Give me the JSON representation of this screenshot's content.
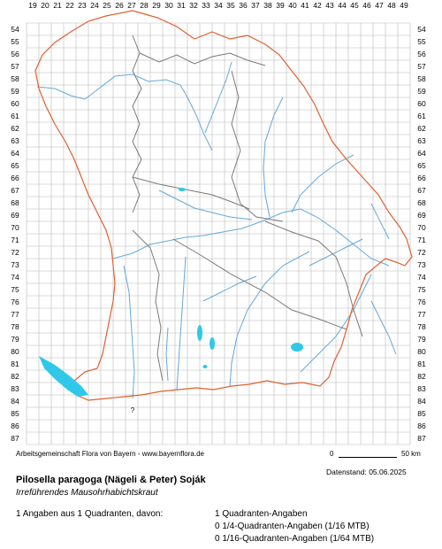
{
  "map": {
    "x_labels": [
      "19",
      "20",
      "21",
      "22",
      "23",
      "24",
      "25",
      "26",
      "27",
      "28",
      "29",
      "30",
      "31",
      "32",
      "33",
      "34",
      "35",
      "36",
      "37",
      "38",
      "39",
      "40",
      "41",
      "42",
      "43",
      "44",
      "45",
      "46",
      "47",
      "48",
      "49"
    ],
    "y_labels": [
      "54",
      "55",
      "56",
      "57",
      "58",
      "59",
      "60",
      "61",
      "62",
      "63",
      "64",
      "65",
      "66",
      "67",
      "68",
      "69",
      "70",
      "71",
      "72",
      "73",
      "74",
      "75",
      "76",
      "77",
      "78",
      "79",
      "80",
      "81",
      "82",
      "83",
      "84",
      "85",
      "86",
      "87"
    ],
    "colors": {
      "grid": "#b8b8b8",
      "state_border": "#e0602f",
      "district_border": "#7a7a7a",
      "rivers": "#62a9dc",
      "lakes": "#2fc8e8"
    }
  },
  "footer": {
    "credit": "Arbeitsgemeinschaft Flora von Bayern - www.bayernflora.de",
    "scale_start": "0",
    "scale_end": "50 km",
    "date": "Datenstand: 05.06.2025"
  },
  "species": {
    "scientific_name": "Pilosella paragoga (Nägeli & Peter) Soják",
    "common_name": "Irreführendes Mausohrhabichtskraut"
  },
  "stats": {
    "summary": "1 Angaben aus 1 Quadranten, davon:",
    "quadrants": "1 Quadranten-Angaben",
    "quarter": "0 1/4-Quadranten-Angaben (1/16 MTB)",
    "sixteenth": "0 1/16-Quadranten-Angaben (1/64 MTB)"
  }
}
